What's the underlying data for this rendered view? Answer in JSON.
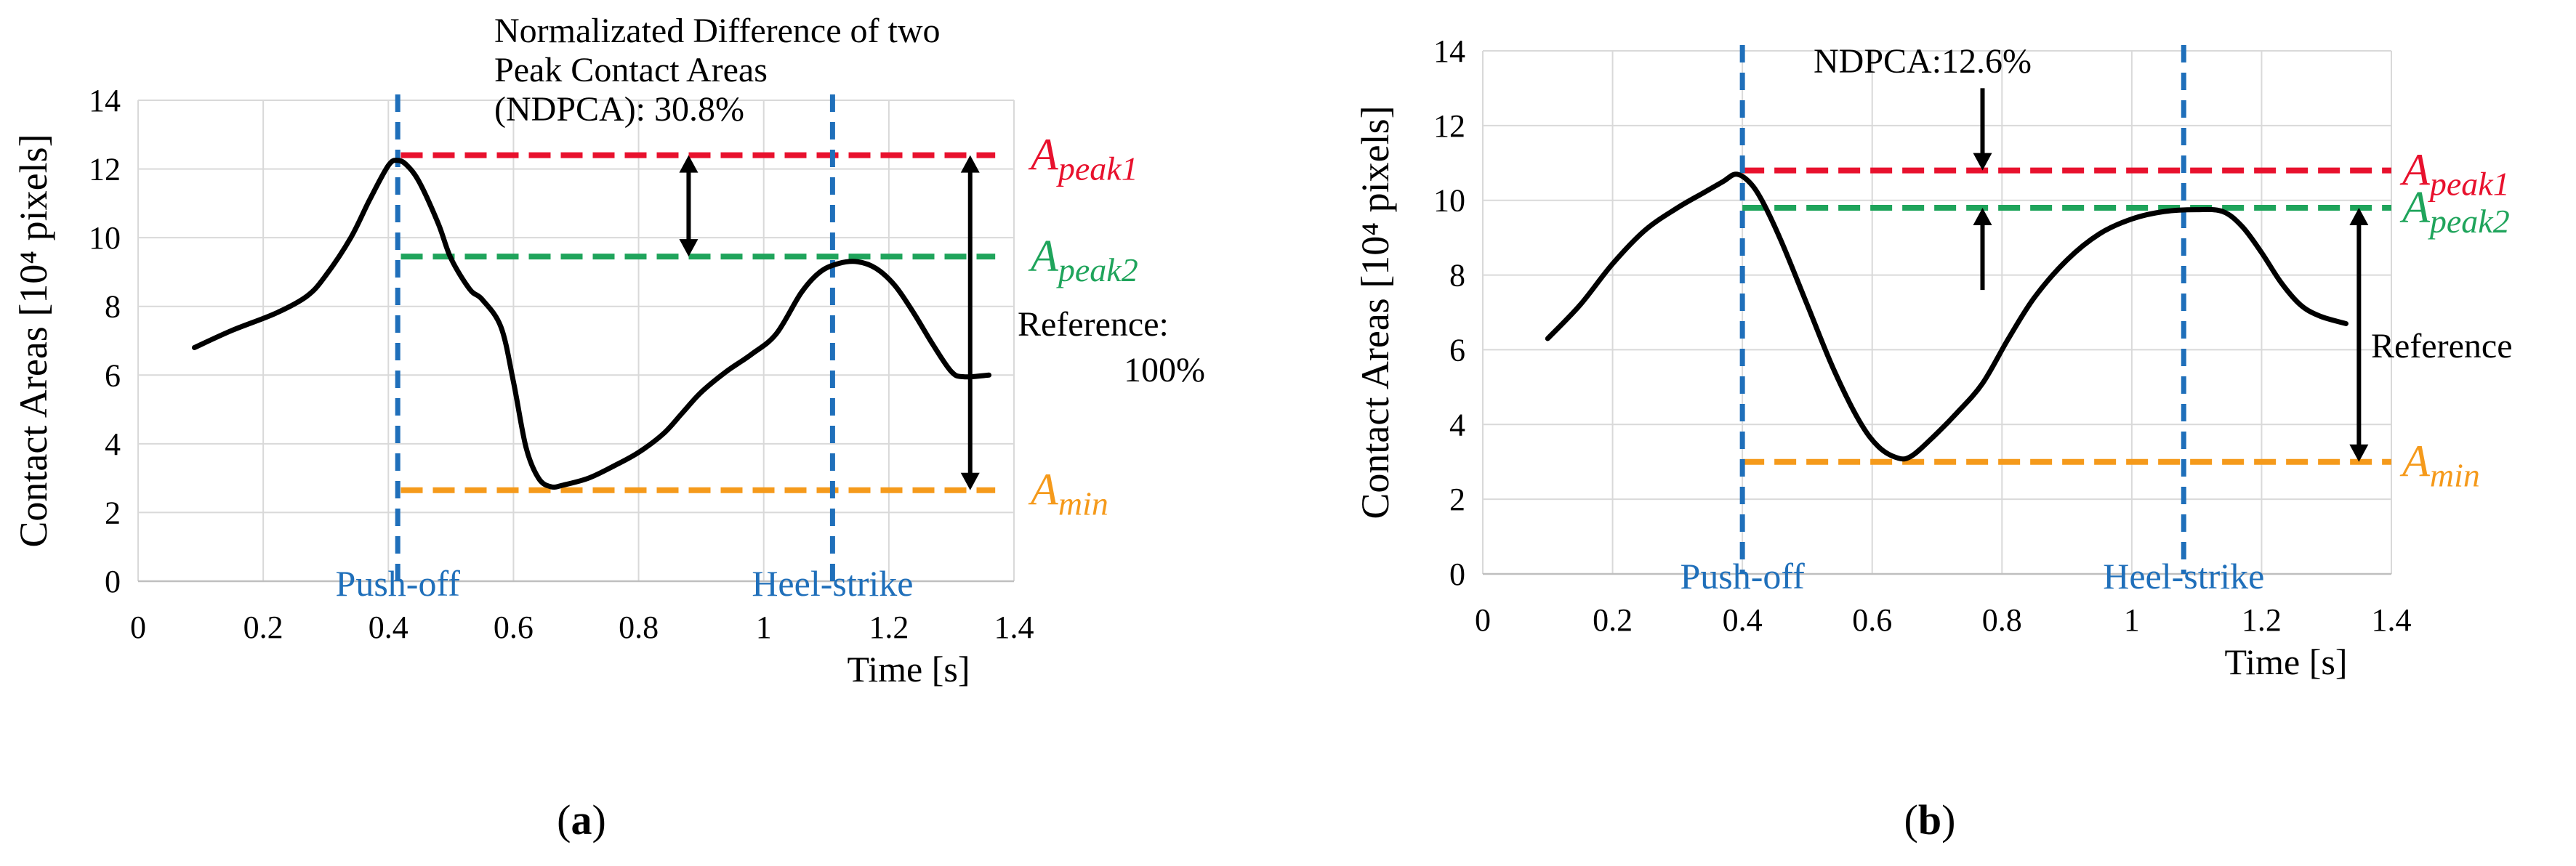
{
  "figure": {
    "panels": [
      "a",
      "b"
    ]
  },
  "colors": {
    "curve": "#000000",
    "peak1": "#e8112d",
    "peak2": "#1fa45b",
    "min": "#f59a1b",
    "event": "#1f6fba",
    "grid": "#d9d9d9",
    "axis": "#bfbfbf",
    "text": "#000000"
  },
  "chart_data": [
    {
      "id": "a",
      "type": "line",
      "caption": "a",
      "title": "",
      "xlabel": "Time [s]",
      "ylabel": "Contact Areas [10⁴ pixels]",
      "xlim": [
        0,
        1.4
      ],
      "ylim": [
        0,
        14
      ],
      "xticks": [
        "0",
        "0.2",
        "0.4",
        "0.6",
        "0.8",
        "1",
        "1.2",
        "1.4"
      ],
      "yticks": [
        "0",
        "2",
        "4",
        "6",
        "8",
        "10",
        "12",
        "14"
      ],
      "grid": true,
      "series": [
        {
          "name": "Contact area",
          "x": [
            0.09,
            0.15,
            0.22,
            0.27,
            0.3,
            0.34,
            0.37,
            0.4,
            0.415,
            0.43,
            0.45,
            0.48,
            0.5,
            0.53,
            0.55,
            0.58,
            0.6,
            0.62,
            0.64,
            0.66,
            0.68,
            0.72,
            0.76,
            0.8,
            0.84,
            0.87,
            0.9,
            0.94,
            0.98,
            1.02,
            1.06,
            1.09,
            1.12,
            1.15,
            1.18,
            1.21,
            1.24,
            1.27,
            1.3,
            1.32,
            1.36
          ],
          "y": [
            6.8,
            7.3,
            7.8,
            8.3,
            8.9,
            10.0,
            11.1,
            12.1,
            12.25,
            12.1,
            11.6,
            10.4,
            9.4,
            8.5,
            8.2,
            7.4,
            5.8,
            3.9,
            3.0,
            2.75,
            2.8,
            3.0,
            3.35,
            3.75,
            4.3,
            4.9,
            5.5,
            6.1,
            6.6,
            7.2,
            8.4,
            9.0,
            9.25,
            9.3,
            9.1,
            8.6,
            7.8,
            6.9,
            6.1,
            5.95,
            6.0
          ]
        }
      ],
      "reference_lines": [
        {
          "name": "A_peak1",
          "y": 12.4,
          "x_start": 0.42,
          "x_end": 1.37
        },
        {
          "name": "A_peak2",
          "y": 9.45,
          "x_start": 0.42,
          "x_end": 1.37
        },
        {
          "name": "A_min",
          "y": 2.65,
          "x_start": 0.42,
          "x_end": 1.37
        }
      ],
      "events": [
        {
          "label": "Push-off",
          "x": 0.415
        },
        {
          "label": "Heel-strike",
          "x": 1.11
        }
      ],
      "annotations": [
        {
          "lines": [
            "Normalizated Difference of two",
            "Peak Contact Areas",
            "(NDPCA): 30.8%"
          ]
        },
        {
          "lines": [
            "Reference:",
            "100%"
          ]
        }
      ],
      "arrows": [
        {
          "kind": "double",
          "x": 0.88,
          "y_from": 12.4,
          "y_to": 9.45
        },
        {
          "kind": "double",
          "x": 1.33,
          "y_from": 12.4,
          "y_to": 2.65
        }
      ],
      "legend": [
        {
          "base": "A",
          "sub": "peak1",
          "series": "A_peak1"
        },
        {
          "base": "A",
          "sub": "peak2",
          "series": "A_peak2"
        },
        {
          "base": "A",
          "sub": "min",
          "series": "A_min"
        }
      ]
    },
    {
      "id": "b",
      "type": "line",
      "caption": "b",
      "title": "",
      "xlabel": "Time [s]",
      "ylabel": "Contact Areas [10⁴ pixels]",
      "xlim": [
        0,
        1.4
      ],
      "ylim": [
        0,
        14
      ],
      "xticks": [
        "0",
        "0.2",
        "0.4",
        "0.6",
        "0.8",
        "1",
        "1.2",
        "1.4"
      ],
      "yticks": [
        "0",
        "2",
        "4",
        "6",
        "8",
        "10",
        "12",
        "14"
      ],
      "grid": true,
      "series": [
        {
          "name": "Contact area",
          "x": [
            0.1,
            0.15,
            0.2,
            0.25,
            0.3,
            0.34,
            0.37,
            0.39,
            0.41,
            0.43,
            0.46,
            0.5,
            0.54,
            0.58,
            0.61,
            0.64,
            0.66,
            0.69,
            0.73,
            0.77,
            0.81,
            0.85,
            0.9,
            0.95,
            1.0,
            1.05,
            1.1,
            1.14,
            1.17,
            1.2,
            1.23,
            1.26,
            1.29,
            1.33
          ],
          "y": [
            6.3,
            7.2,
            8.3,
            9.2,
            9.8,
            10.2,
            10.5,
            10.7,
            10.5,
            10.0,
            8.9,
            7.2,
            5.5,
            4.1,
            3.4,
            3.1,
            3.15,
            3.6,
            4.3,
            5.1,
            6.3,
            7.4,
            8.4,
            9.1,
            9.5,
            9.7,
            9.75,
            9.7,
            9.3,
            8.6,
            7.8,
            7.2,
            6.9,
            6.7
          ]
        }
      ],
      "reference_lines": [
        {
          "name": "A_peak1",
          "y": 10.8,
          "x_start": 0.4,
          "x_end": 1.4
        },
        {
          "name": "A_peak2",
          "y": 9.8,
          "x_start": 0.4,
          "x_end": 1.4
        },
        {
          "name": "A_min",
          "y": 3.0,
          "x_start": 0.4,
          "x_end": 1.4
        }
      ],
      "events": [
        {
          "label": "Push-off",
          "x": 0.4
        },
        {
          "label": "Heel-strike",
          "x": 1.08
        }
      ],
      "annotations": [
        {
          "lines": [
            "NDPCA:12.6%"
          ]
        },
        {
          "lines": [
            "Reference"
          ]
        }
      ],
      "arrows": [
        {
          "kind": "down",
          "x": 0.77,
          "y_from": 13.0,
          "y_to": 10.8
        },
        {
          "kind": "up",
          "x": 0.77,
          "y_from": 7.6,
          "y_to": 9.8
        },
        {
          "kind": "double",
          "x": 1.35,
          "y_from": 9.8,
          "y_to": 3.0
        }
      ],
      "legend": [
        {
          "base": "A",
          "sub": "peak1",
          "series": "A_peak1"
        },
        {
          "base": "A",
          "sub": "peak2",
          "series": "A_peak2"
        },
        {
          "base": "A",
          "sub": "min",
          "series": "A_min"
        }
      ]
    }
  ]
}
